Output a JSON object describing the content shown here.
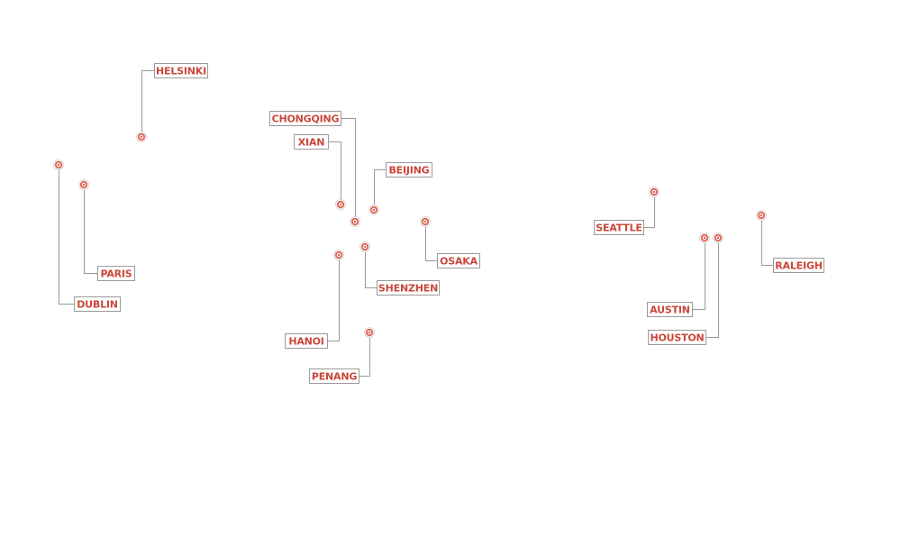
{
  "map": {
    "pin_color": "#d9543f",
    "label_color": "#c9463a",
    "leader_color": "#9a9a9a",
    "locations": [
      {
        "id": "helsinki",
        "label": "HELSINKI"
      },
      {
        "id": "dublin",
        "label": "DUBLIN"
      },
      {
        "id": "paris",
        "label": "PARIS"
      },
      {
        "id": "chongqing",
        "label": "CHONGQING"
      },
      {
        "id": "xian",
        "label": "XIAN"
      },
      {
        "id": "beijing",
        "label": "BEIJING"
      },
      {
        "id": "osaka",
        "label": "OSAKA"
      },
      {
        "id": "shenzhen",
        "label": "SHENZHEN"
      },
      {
        "id": "hanoi",
        "label": "HANOI"
      },
      {
        "id": "penang",
        "label": "PENANG"
      },
      {
        "id": "seattle",
        "label": "SEATTLE"
      },
      {
        "id": "austin",
        "label": "AUSTIN"
      },
      {
        "id": "houston",
        "label": "HOUSTON"
      },
      {
        "id": "raleigh",
        "label": "RALEIGH"
      }
    ]
  }
}
